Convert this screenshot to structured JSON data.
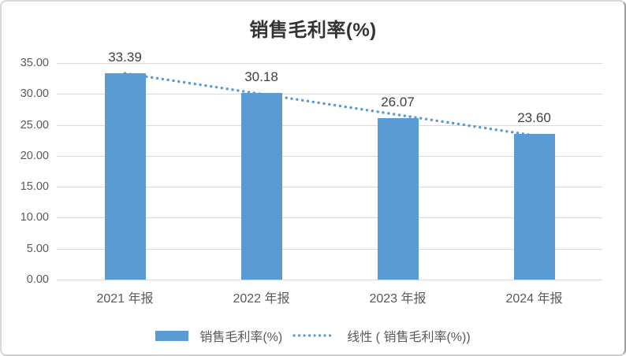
{
  "chart_data": {
    "type": "bar",
    "title": "销售毛利率(%)",
    "categories": [
      "2021 年报",
      "2022 年报",
      "2023 年报",
      "2024 年报"
    ],
    "values": [
      33.39,
      30.18,
      26.07,
      23.6
    ],
    "value_labels": [
      "33.39",
      "30.18",
      "26.07",
      "23.60"
    ],
    "ylim": [
      0,
      35
    ],
    "ytick_step": 5,
    "ytick_labels": [
      "0.00",
      "5.00",
      "10.00",
      "15.00",
      "20.00",
      "25.00",
      "30.00",
      "35.00"
    ],
    "grid": true,
    "has_linear_trendline": true,
    "legend_position": "bottom",
    "legend": [
      {
        "type": "bar-swatch",
        "label": "销售毛利率(%)"
      },
      {
        "type": "dotted-line",
        "label": "线性 ( 销售毛利率(%))"
      }
    ],
    "colors": {
      "bar": "#5B9BD5",
      "trend": "#5B9BD5",
      "grid": "#D9D9D9",
      "title_text": "#333333",
      "axis_text": "#595959",
      "value_label_text": "#404040",
      "frame_border": "#D9D9D9"
    }
  }
}
